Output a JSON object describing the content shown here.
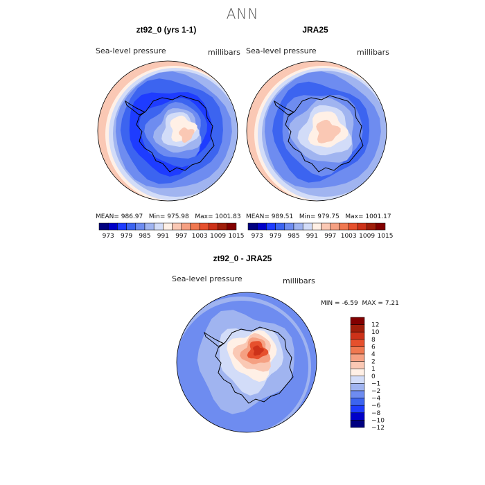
{
  "figure": {
    "title": "ANN",
    "units": "millibars",
    "field": "Sea-level pressure"
  },
  "chart_data": [
    {
      "type": "heatmap",
      "title": "zt92_0 (yrs 1-1)",
      "variable": "Sea-level pressure",
      "units": "millibars",
      "projection": "south polar stereographic",
      "stats": {
        "mean_label": "MEAN=",
        "mean": "986.97",
        "min_label": "Min=",
        "min": "975.98",
        "max_label": "Max=",
        "max": "1001.83"
      },
      "colorbar_ticks": [
        "973",
        "979",
        "985",
        "991",
        "997",
        "1003",
        "1009",
        "1015"
      ]
    },
    {
      "type": "heatmap",
      "title": "JRA25",
      "variable": "Sea-level pressure",
      "units": "millibars",
      "projection": "south polar stereographic",
      "stats": {
        "mean_label": "MEAN=",
        "mean": "989.51",
        "min_label": "Min=",
        "min": "979.75",
        "max_label": "Max=",
        "max": "1001.17"
      },
      "colorbar_ticks": [
        "973",
        "979",
        "985",
        "991",
        "997",
        "1003",
        "1009",
        "1015"
      ]
    },
    {
      "type": "heatmap",
      "title": "zt92_0 - JRA25",
      "variable": "Sea-level pressure",
      "units": "millibars",
      "projection": "south polar stereographic",
      "stats": {
        "min_label": "MIN =",
        "min": "-6.59",
        "max_label": "MAX =",
        "max": "7.21"
      },
      "colorbar_ticks": [
        "12",
        "10",
        "8",
        "6",
        "4",
        "2",
        "1",
        "0",
        "−1",
        "−2",
        "−4",
        "−6",
        "−8",
        "−10",
        "−12"
      ]
    }
  ],
  "colors": {
    "abs_scale": [
      "#000080",
      "#0000c8",
      "#1e3cff",
      "#3c64f0",
      "#6e8cf0",
      "#a0b4f0",
      "#d2dcf8",
      "#fff0e6",
      "#fac8b4",
      "#f5a082",
      "#f07850",
      "#e6502d",
      "#cd3219",
      "#a01e0a",
      "#820000"
    ],
    "diff_scale": [
      "#820000",
      "#a01e0a",
      "#cd3219",
      "#e6502d",
      "#f07850",
      "#f5a082",
      "#fac8b4",
      "#fff0e6",
      "#d2dcf8",
      "#a0b4f0",
      "#6e8cf0",
      "#3c64f0",
      "#1e3cff",
      "#0000c8",
      "#000080"
    ]
  }
}
